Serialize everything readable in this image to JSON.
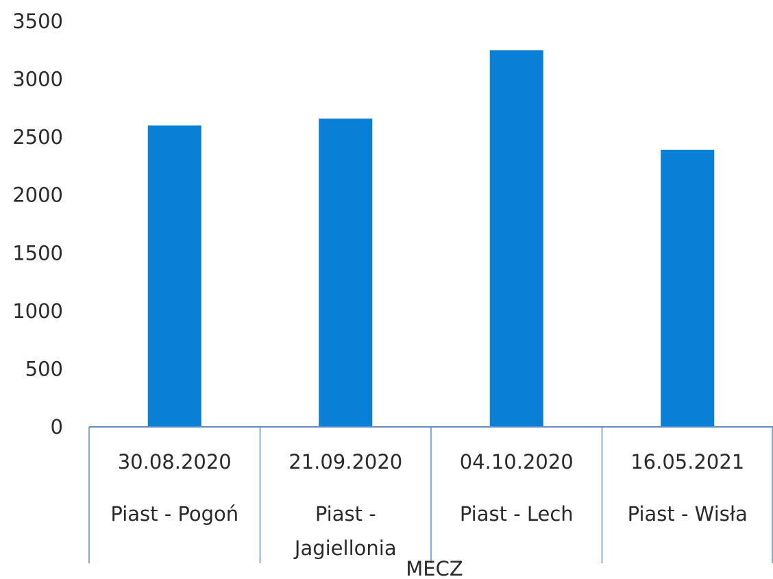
{
  "chart_data": {
    "type": "bar",
    "categories": [
      {
        "date": "30.08.2020",
        "match": [
          "Piast - Pogoń"
        ]
      },
      {
        "date": "21.09.2020",
        "match": [
          "Piast -",
          "Jagiellonia"
        ]
      },
      {
        "date": "04.10.2020",
        "match": [
          "Piast - Lech"
        ]
      },
      {
        "date": "16.05.2021",
        "match": [
          "Piast - Wisła"
        ]
      }
    ],
    "values": [
      2600,
      2660,
      3250,
      2390
    ],
    "xlabel": "MECZ",
    "ylabel": "",
    "ylim": [
      0,
      3500
    ],
    "yticks": [
      "0",
      "500",
      "1000",
      "1500",
      "2000",
      "2500",
      "3000",
      "3500"
    ],
    "grid": false,
    "legend": "none",
    "colors": {
      "bar": "#0a7fd6",
      "axis": "#5f8fc4"
    }
  }
}
